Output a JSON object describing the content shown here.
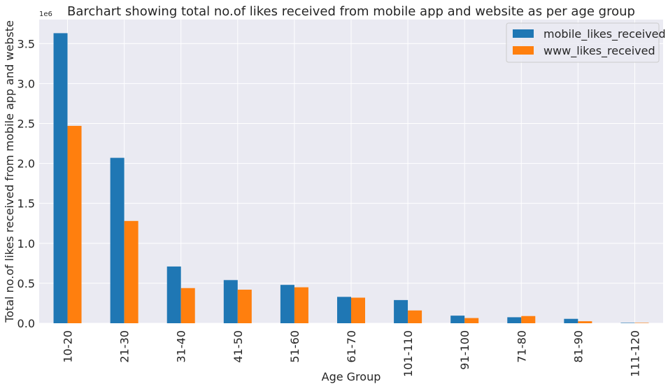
{
  "chart_data": {
    "type": "bar",
    "title": "Barchart showing total no.of likes received from mobile app and website as per age group",
    "xlabel": "Age Group",
    "ylabel": "Total no.of likes received from mobile app and webste",
    "scale_note": "1e6",
    "categories": [
      "10-20",
      "21-30",
      "31-40",
      "41-50",
      "51-60",
      "61-70",
      "101-110",
      "91-100",
      "71-80",
      "81-90",
      "111-120"
    ],
    "series": [
      {
        "name": "mobile_likes_received",
        "color": "#1f77b4",
        "values": [
          3.63,
          2.07,
          0.71,
          0.54,
          0.48,
          0.33,
          0.29,
          0.095,
          0.075,
          0.055,
          0.005
        ]
      },
      {
        "name": "www_likes_received",
        "color": "#ff7f0e",
        "values": [
          2.47,
          1.28,
          0.44,
          0.42,
          0.45,
          0.32,
          0.16,
          0.065,
          0.09,
          0.025,
          0.005
        ]
      }
    ],
    "ylim": [
      0,
      3.8
    ],
    "yticks": [
      "0.0",
      "0.5",
      "1.0",
      "1.5",
      "2.0",
      "2.5",
      "3.0",
      "3.5"
    ],
    "grid": true,
    "legend_position": "top-right",
    "plot_background": "#eaeaf2"
  }
}
